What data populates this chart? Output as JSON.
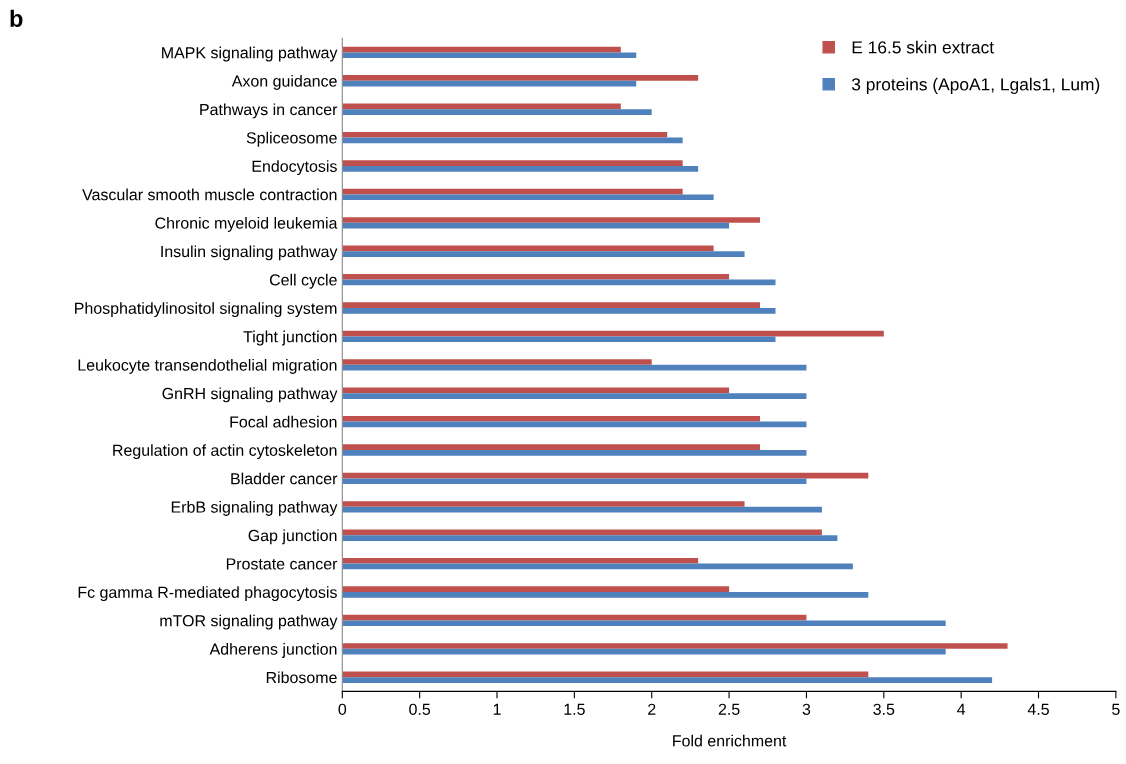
{
  "chart_data": {
    "type": "bar",
    "orientation": "horizontal",
    "title": "b",
    "xlabel": "Fold enrichment",
    "categories": [
      "MAPK signaling pathway",
      "Axon guidance",
      "Pathways in cancer",
      "Spliceosome",
      "Endocytosis",
      "Vascular smooth muscle contraction",
      "Chronic myeloid leukemia",
      "Insulin signaling pathway",
      "Cell cycle",
      "Phosphatidylinositol signaling system",
      "Tight junction",
      "Leukocyte transendothelial migration",
      "GnRH signaling pathway",
      "Focal adhesion",
      "Regulation of actin cytoskeleton",
      "Bladder cancer",
      "ErbB signaling pathway",
      "Gap junction",
      "Prostate cancer",
      "Fc gamma R-mediated phagocytosis",
      "mTOR signaling pathway",
      "Adherens junction",
      "Ribosome"
    ],
    "series": [
      {
        "name": "E 16.5 skin extract",
        "color": "#c0504d",
        "values": [
          1.8,
          2.3,
          1.8,
          2.1,
          2.2,
          2.2,
          2.7,
          2.4,
          2.5,
          2.7,
          3.5,
          2.0,
          2.5,
          2.7,
          2.7,
          3.4,
          2.6,
          3.1,
          2.3,
          2.5,
          3.0,
          4.3,
          3.4
        ]
      },
      {
        "name": "3 proteins (ApoA1, Lgals1, Lum)",
        "color": "#4f81bd",
        "values": [
          1.9,
          1.9,
          2.0,
          2.2,
          2.3,
          2.4,
          2.5,
          2.6,
          2.8,
          2.8,
          2.8,
          3.0,
          3.0,
          3.0,
          3.0,
          3.0,
          3.1,
          3.2,
          3.3,
          3.4,
          3.9,
          3.9,
          4.2
        ]
      }
    ],
    "xlim": [
      0,
      5
    ],
    "xticks": [
      0,
      0.5,
      1,
      1.5,
      2,
      2.5,
      3,
      3.5,
      4,
      4.5,
      5
    ],
    "grid": false,
    "legend": "top right"
  }
}
